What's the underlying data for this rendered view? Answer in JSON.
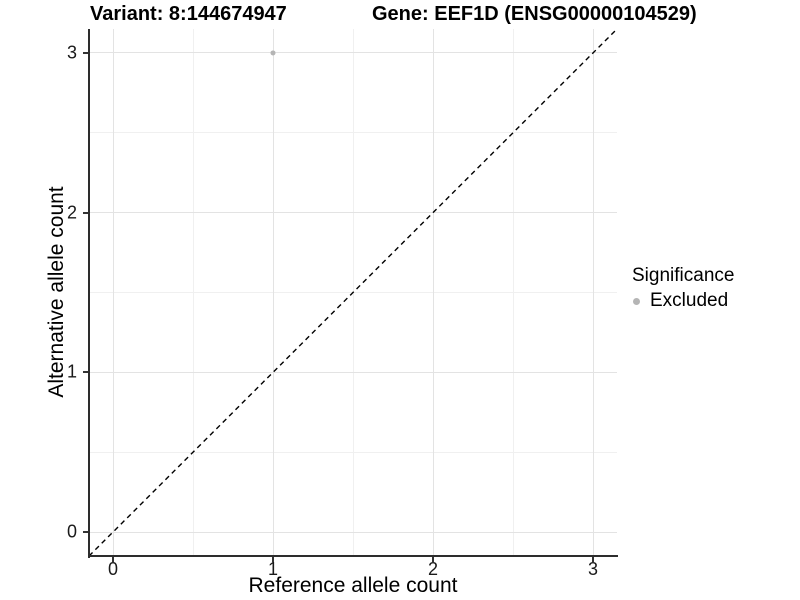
{
  "titles": {
    "variant": "Variant: 8:144674947",
    "gene": "Gene: EEF1D (ENSG00000104529)"
  },
  "chart_data": {
    "type": "scatter",
    "titles": [
      "Variant: 8:144674947",
      "Gene: EEF1D (ENSG00000104529)"
    ],
    "xlabel": "Reference allele count",
    "ylabel": "Alternative allele count",
    "xlim": [
      -0.15,
      3.15
    ],
    "ylim": [
      -0.15,
      3.15
    ],
    "x_ticks": [
      0,
      1,
      2,
      3
    ],
    "y_ticks": [
      0,
      1,
      2,
      3
    ],
    "x_minor_ticks": [
      0.5,
      1.5,
      2.5
    ],
    "y_minor_ticks": [
      0.5,
      1.5,
      2.5
    ],
    "grid": "major+minor",
    "points": [
      {
        "x": 1,
        "y": 3,
        "series": "Excluded"
      }
    ],
    "reference_line": {
      "type": "identity",
      "slope": 1,
      "intercept": 0,
      "style": "dashed",
      "color": "#000000"
    },
    "legend": {
      "title": "Significance",
      "position": "right",
      "items": [
        {
          "label": "Excluded",
          "color": "#b5b5b5"
        }
      ]
    },
    "colors": {
      "point_excluded": "#b5b5b5",
      "grid_major": "#e3e3e3",
      "grid_minor": "#f0f0f0",
      "axis_line": "#2d2d2d",
      "tick_text": "#1a1a1a"
    }
  }
}
